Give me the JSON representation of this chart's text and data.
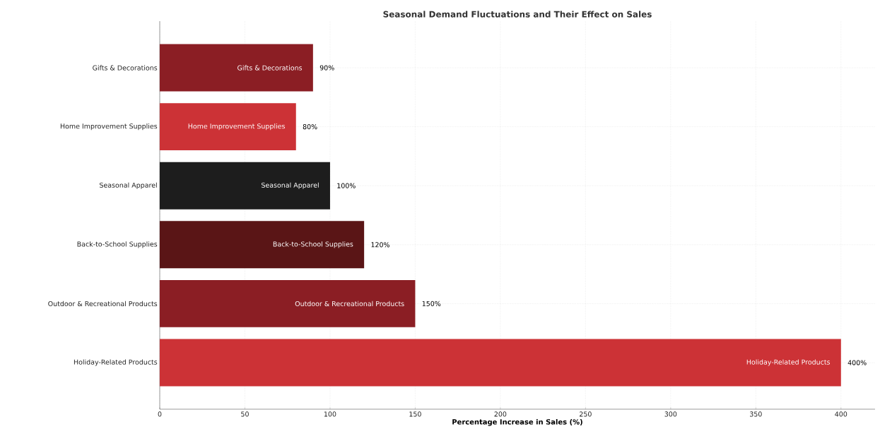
{
  "chart_data": {
    "type": "bar",
    "orientation": "horizontal",
    "title": "Seasonal Demand Fluctuations and Their Effect on Sales",
    "xlabel": "Percentage Increase in Sales (%)",
    "categories": [
      "Gifts & Decorations",
      "Home Improvement Supplies",
      "Seasonal Apparel",
      "Back-to-School Supplies",
      "Outdoor & Recreational Products",
      "Holiday-Related Products"
    ],
    "values": [
      90,
      80,
      100,
      120,
      150,
      400
    ],
    "colors": [
      "#8b1e24",
      "#cc3236",
      "#1d1d1d",
      "#5a1516",
      "#8b1e24",
      "#cc3236"
    ],
    "value_labels": [
      "90%",
      "80%",
      "100%",
      "120%",
      "150%",
      "400%"
    ],
    "annotations": [
      {
        "text": "Gifts & Decorations",
        "x": 90,
        "y": "Gifts & Decorations"
      },
      {
        "text": "Home Improvement Supplies",
        "x": 80,
        "y": "Home Improvement Supplies"
      },
      {
        "text": "Seasonal Apparel",
        "x": 100,
        "y": "Seasonal Apparel"
      },
      {
        "text": "Back-to-School Supplies",
        "x": 120,
        "y": "Back-to-School Supplies"
      },
      {
        "text": "Outdoor & Recreational Products",
        "x": 150,
        "y": "Outdoor & Recreational Products"
      },
      {
        "text": "Holiday-Related Products",
        "x": 400,
        "y": "Holiday-Related Products"
      }
    ],
    "xlim": [
      0,
      420
    ],
    "xticks": [
      0,
      50,
      100,
      150,
      200,
      250,
      300,
      350,
      400
    ],
    "grid": true
  }
}
